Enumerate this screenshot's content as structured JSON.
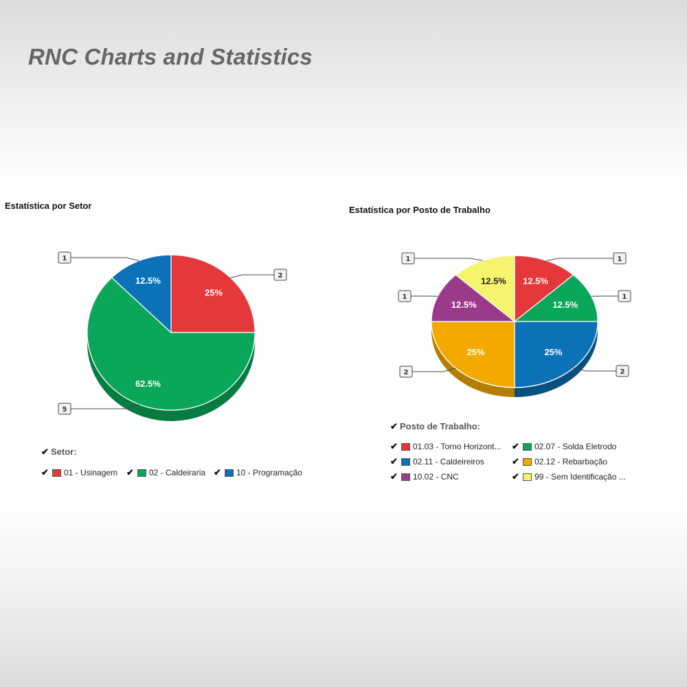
{
  "page": {
    "title": "RNC Charts and Statistics"
  },
  "chart_data": [
    {
      "type": "pie",
      "title": "Estatística por Setor",
      "legend_title": "Setor:",
      "slices": [
        {
          "name": "01 - Usinagem",
          "value": 2,
          "percent": "25%",
          "color": "#e4383a",
          "side": "#a82628",
          "label_color": "#ffffff"
        },
        {
          "name": "02 - Caldeiraria",
          "value": 5,
          "percent": "62.5%",
          "color": "#0aa65a",
          "side": "#067c41",
          "label_color": "#ffffff"
        },
        {
          "name": "10 - Programação",
          "value": 1,
          "percent": "12.5%",
          "color": "#0b72b8",
          "side": "#07507f",
          "label_color": "#ffffff"
        }
      ]
    },
    {
      "type": "pie",
      "title": "Estatística por Posto de Trabalho",
      "legend_title": "Posto de Trabalho:",
      "slices": [
        {
          "name": "01.03 - Torno Horizont...",
          "value": 1,
          "percent": "12.5%",
          "color": "#e4383a",
          "side": "#a82628",
          "label_color": "#ffffff"
        },
        {
          "name": "02.07 - Solda Eletrodo",
          "value": 1,
          "percent": "12.5%",
          "color": "#0aa65a",
          "side": "#067c41",
          "label_color": "#ffffff"
        },
        {
          "name": "02.11 - Caldeireiros",
          "value": 2,
          "percent": "25%",
          "color": "#0b72b8",
          "side": "#07507f",
          "label_color": "#ffffff"
        },
        {
          "name": "02.12 - Rebarbação",
          "value": 2,
          "percent": "25%",
          "color": "#f2a900",
          "side": "#b57e00",
          "label_color": "#ffffff"
        },
        {
          "name": "10.02 - CNC",
          "value": 1,
          "percent": "12.5%",
          "color": "#9a3a8a",
          "side": "#6c2861",
          "label_color": "#ffffff"
        },
        {
          "name": "99 - Sem Identificação ...",
          "value": 1,
          "percent": "12.5%",
          "color": "#f6f36e",
          "side": "#c2bf3c",
          "label_color": "#222222"
        }
      ]
    }
  ]
}
